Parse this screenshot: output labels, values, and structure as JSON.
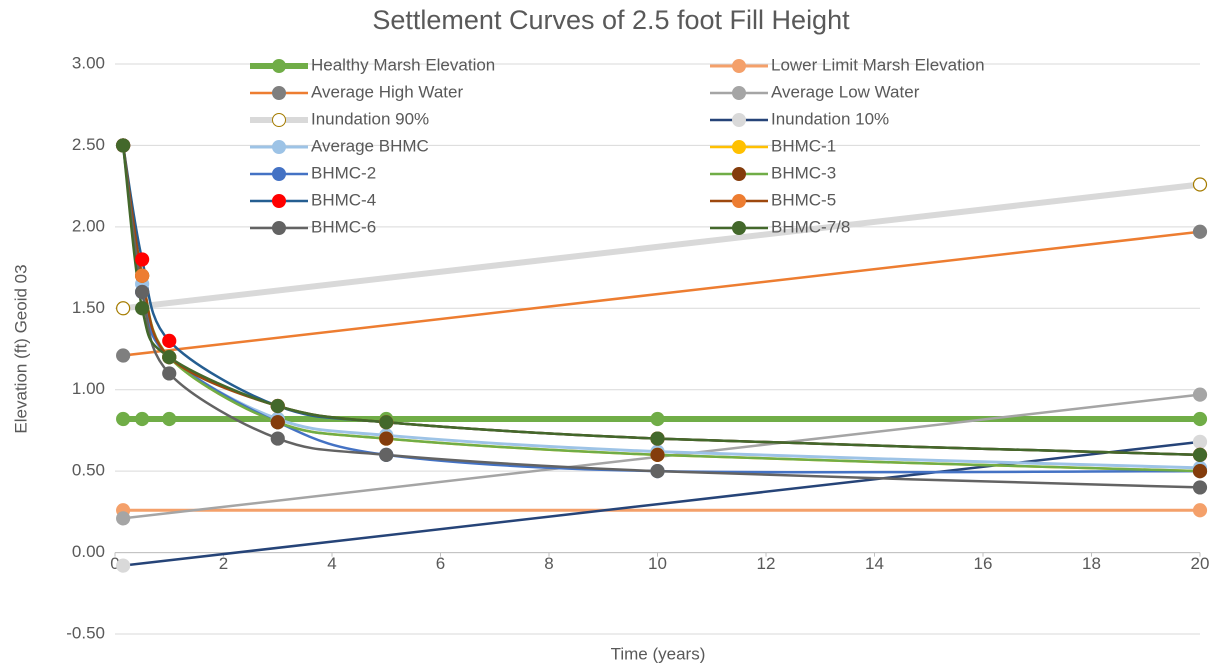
{
  "chart_data": {
    "type": "line",
    "title": "Settlement Curves of 2.5 foot Fill Height",
    "x_label": "Time (years)",
    "y_label": "Elevation (ft) Geoid 03",
    "xlim": [
      0,
      20
    ],
    "xticks": [
      0,
      2,
      4,
      6,
      8,
      10,
      12,
      14,
      16,
      18,
      20
    ],
    "ylim": [
      -0.5,
      3
    ],
    "yticks": [
      {
        "value": -0.5,
        "label": "-0.50"
      },
      {
        "value": 0,
        "label": "0.00"
      },
      {
        "value": 0.5,
        "label": "0.50"
      },
      {
        "value": 1,
        "label": "1.00"
      },
      {
        "value": 1.5,
        "label": "1.50"
      },
      {
        "value": 2,
        "label": "2.00"
      },
      {
        "value": 2.5,
        "label": "2.50"
      },
      {
        "value": 3,
        "label": "3.00"
      }
    ],
    "grid": true,
    "legend": "top",
    "series": [
      {
        "name": "Healthy Marsh Elevation",
        "color": "#70ad47",
        "marker_color": "#70ad47",
        "width": 6,
        "x": [
          0.15,
          0.5,
          1,
          3,
          5,
          10,
          20
        ],
        "values": [
          0.82,
          0.82,
          0.82,
          0.82,
          0.82,
          0.82,
          0.82
        ]
      },
      {
        "name": "Lower Limit Marsh Elevation",
        "color": "#f4a06a",
        "marker_color": "#f4a06a",
        "width": 3,
        "x": [
          0.15,
          20
        ],
        "values": [
          0.26,
          0.26
        ]
      },
      {
        "name": "Average High Water",
        "color": "#ed7d31",
        "marker_color": "#7f7f7f",
        "width": 2.5,
        "x": [
          0.15,
          20
        ],
        "values": [
          1.21,
          1.97
        ]
      },
      {
        "name": "Average Low Water",
        "color": "#a5a5a5",
        "marker_color": "#a5a5a5",
        "width": 2.5,
        "x": [
          0.15,
          20
        ],
        "values": [
          0.21,
          0.97
        ]
      },
      {
        "name": "Inundation 90%",
        "color": "#d9d9d9",
        "marker_color": "#ffffff",
        "marker_stroke": "#a57c00",
        "width": 6,
        "x": [
          0.15,
          20
        ],
        "values": [
          1.5,
          2.26
        ]
      },
      {
        "name": "Inundation 10%",
        "color": "#264478",
        "marker_color": "#d9d9d9",
        "width": 2.5,
        "x": [
          0.15,
          20
        ],
        "values": [
          -0.08,
          0.68
        ]
      },
      {
        "name": "Average BHMC",
        "color": "#9dc3e6",
        "marker_color": "#9dc3e6",
        "width": 3,
        "x": [
          0.15,
          0.5,
          1,
          3,
          5,
          10,
          20
        ],
        "values": [
          2.5,
          1.65,
          1.2,
          0.82,
          0.72,
          0.62,
          0.52
        ]
      },
      {
        "name": "BHMC-1",
        "color": "#ffc000",
        "marker_color": "#ffc000",
        "width": 2.5,
        "x": [
          0.15,
          0.5,
          1,
          3,
          5,
          10,
          20
        ],
        "values": [
          2.5,
          1.7,
          1.2,
          0.8,
          0.7,
          0.6,
          0.5
        ]
      },
      {
        "name": "BHMC-2",
        "color": "#4472c4",
        "marker_color": "#4472c4",
        "width": 2.5,
        "x": [
          0.15,
          0.5,
          1,
          3,
          5,
          10,
          20
        ],
        "values": [
          2.5,
          1.6,
          1.2,
          0.8,
          0.6,
          0.5,
          0.5
        ]
      },
      {
        "name": "BHMC-3",
        "color": "#70ad47",
        "marker_color": "#843c0c",
        "width": 2.5,
        "x": [
          0.15,
          0.5,
          1,
          3,
          5,
          10,
          20
        ],
        "values": [
          2.5,
          1.7,
          1.2,
          0.8,
          0.7,
          0.6,
          0.5
        ]
      },
      {
        "name": "BHMC-4",
        "color": "#255e91",
        "marker_color": "#ff0000",
        "width": 2.5,
        "x": [
          0.15,
          0.5,
          1,
          3,
          5,
          10,
          20
        ],
        "values": [
          2.5,
          1.8,
          1.3,
          0.9,
          0.8,
          0.7,
          0.6
        ]
      },
      {
        "name": "BHMC-5",
        "color": "#9e480e",
        "marker_color": "#ed7d31",
        "width": 2.5,
        "x": [
          0.15,
          0.5,
          1,
          3,
          5,
          10,
          20
        ],
        "values": [
          2.5,
          1.7,
          1.2,
          0.9,
          0.8,
          0.7,
          0.6
        ]
      },
      {
        "name": "BHMC-6",
        "color": "#636363",
        "marker_color": "#636363",
        "width": 2.5,
        "x": [
          0.15,
          0.5,
          1,
          3,
          5,
          10,
          20
        ],
        "values": [
          2.5,
          1.6,
          1.1,
          0.7,
          0.6,
          0.5,
          0.4
        ]
      },
      {
        "name": "BHMC-7/8",
        "color": "#43682b",
        "marker_color": "#43682b",
        "width": 2.5,
        "x": [
          0.15,
          0.5,
          1,
          3,
          5,
          10,
          20
        ],
        "values": [
          2.5,
          1.5,
          1.2,
          0.9,
          0.8,
          0.7,
          0.6
        ]
      }
    ]
  }
}
